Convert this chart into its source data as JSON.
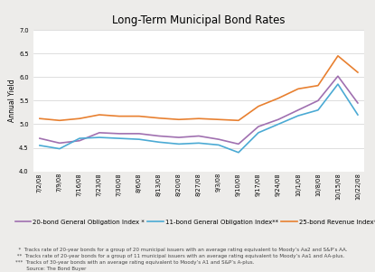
{
  "title": "Long-Term Municipal Bond Rates",
  "ylabel": "Annual Yield",
  "x_labels": [
    "7/2/08",
    "7/9/08",
    "7/16/08",
    "7/23/08",
    "7/30/08",
    "8/6/08",
    "8/13/08",
    "8/20/08",
    "8/27/08",
    "9/3/08",
    "9/10/08",
    "9/17/08",
    "9/24/08",
    "10/1/08",
    "10/8/08",
    "10/15/08",
    "10/22/08"
  ],
  "series_20bond": [
    4.7,
    4.6,
    4.65,
    4.82,
    4.8,
    4.8,
    4.75,
    4.72,
    4.75,
    4.68,
    4.58,
    4.95,
    5.1,
    5.3,
    5.5,
    6.02,
    5.45
  ],
  "series_11bond": [
    4.55,
    4.48,
    4.7,
    4.72,
    4.7,
    4.68,
    4.62,
    4.58,
    4.6,
    4.56,
    4.4,
    4.82,
    5.0,
    5.18,
    5.3,
    5.85,
    5.2
  ],
  "series_25bond": [
    5.12,
    5.08,
    5.12,
    5.2,
    5.17,
    5.17,
    5.13,
    5.1,
    5.12,
    5.1,
    5.08,
    5.38,
    5.55,
    5.75,
    5.82,
    6.45,
    6.1
  ],
  "color_20bond": "#a070b0",
  "color_11bond": "#4baad4",
  "color_25bond": "#e88030",
  "ylim": [
    4.0,
    7.0
  ],
  "yticks": [
    4.0,
    4.5,
    5.0,
    5.5,
    6.0,
    6.5,
    7.0
  ],
  "legend_labels": [
    "20-bond General Obligation Index *",
    "11-bond General Obligation Index**",
    "25-bond Revenue Index***"
  ],
  "footnote1": "  *  Tracks rate of 20-year bonds for a group of 20 municipal issuers with an average rating equivalent to Moody’s Aa2 and S&P’s AA.",
  "footnote2": " **  Tracks rate of 20-year bonds for a group of 11 municipal issuers with an average rating equivalent to Moody’s Aa1 and AA-plus.",
  "footnote3": "***  Tracks of 30-year bonds with an average rating equivalent to Moody’s A1 and S&P’s A-plus.",
  "footnote4": "       Source: The Bond Buyer",
  "background_color": "#edecea",
  "plot_bg_color": "#ffffff",
  "linewidth": 1.2,
  "title_fontsize": 8.5,
  "tick_fontsize": 4.8,
  "ylabel_fontsize": 5.5,
  "footnote_fontsize": 4.0,
  "legend_fontsize": 5.0
}
